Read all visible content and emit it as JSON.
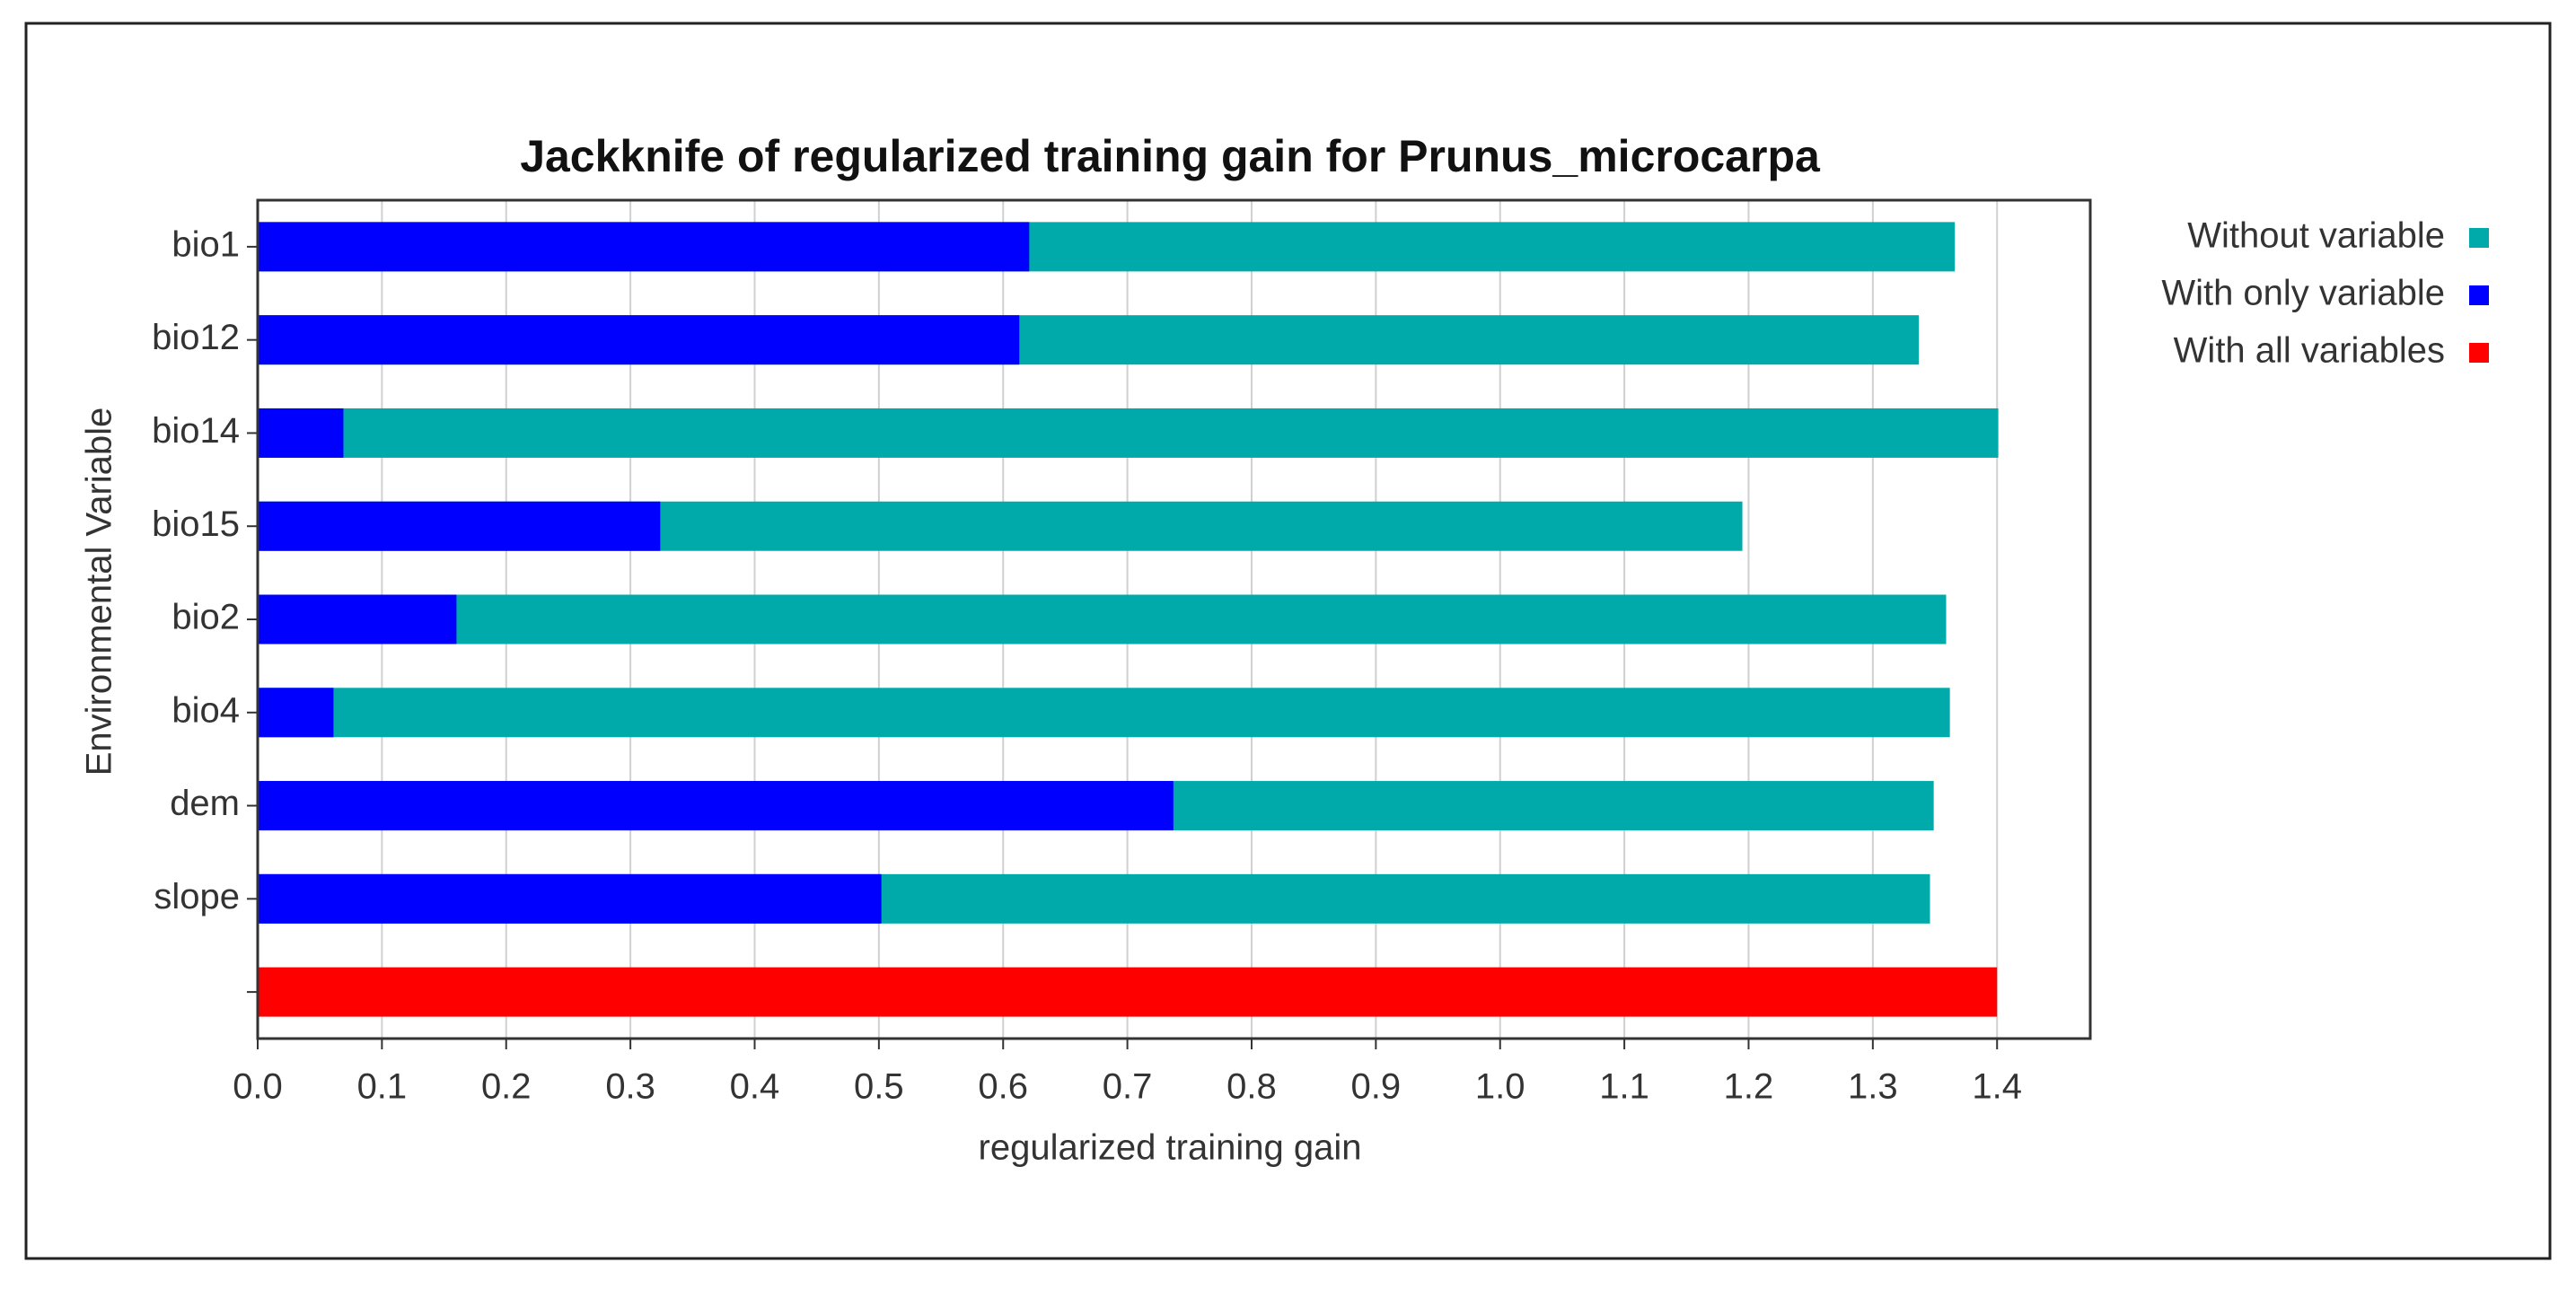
{
  "chart_data": {
    "type": "bar",
    "orientation": "horizontal",
    "overlay": true,
    "title": "Jackknife of regularized training gain for Prunus_microcarpa",
    "x_label": "regularized training gain",
    "y_label": "Environmental Variable",
    "categories": [
      "bio1",
      "bio12",
      "bio14",
      "bio15",
      "bio2",
      "bio4",
      "dem",
      "slope",
      null
    ],
    "series": [
      {
        "name": "Without variable",
        "color": "#00aaaa",
        "values": [
          1.366,
          1.337,
          1.401,
          1.195,
          1.359,
          1.362,
          1.349,
          1.346,
          null
        ]
      },
      {
        "name": "With only variable",
        "color": "#0000ff",
        "values": [
          0.621,
          0.613,
          0.069,
          0.324,
          0.16,
          0.061,
          0.737,
          0.502,
          null
        ]
      },
      {
        "name": "With all variables",
        "color": "#ff0000",
        "values": [
          null,
          null,
          null,
          null,
          null,
          null,
          null,
          null,
          1.4
        ]
      }
    ],
    "xlim": [
      0,
      1.475
    ],
    "xticks": [
      {
        "value": 0,
        "label": "0.0"
      },
      {
        "value": 0.1,
        "label": "0.1"
      },
      {
        "value": 0.2,
        "label": "0.2"
      },
      {
        "value": 0.3,
        "label": "0.3"
      },
      {
        "value": 0.4,
        "label": "0.4"
      },
      {
        "value": 0.5,
        "label": "0.5"
      },
      {
        "value": 0.6,
        "label": "0.6"
      },
      {
        "value": 0.7,
        "label": "0.7"
      },
      {
        "value": 0.8,
        "label": "0.8"
      },
      {
        "value": 0.9,
        "label": "0.9"
      },
      {
        "value": 1,
        "label": "1.0"
      },
      {
        "value": 1.1,
        "label": "1.1"
      },
      {
        "value": 1.2,
        "label": "1.2"
      },
      {
        "value": 1.3,
        "label": "1.3"
      },
      {
        "value": 1.4,
        "label": "1.4"
      }
    ],
    "grid": true,
    "legend": "right"
  }
}
